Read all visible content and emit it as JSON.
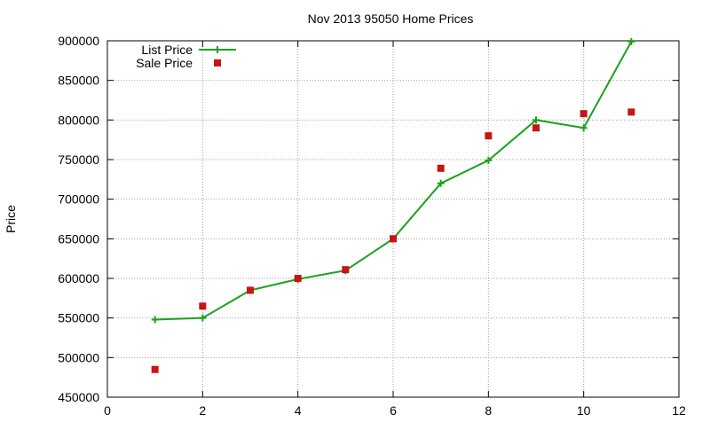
{
  "chart_data": {
    "type": "line",
    "title": "Nov 2013 95050 Home Prices",
    "xlabel": "",
    "ylabel": "Price",
    "xlim": [
      0,
      12
    ],
    "ylim": [
      450000,
      900000
    ],
    "xticks": [
      0,
      2,
      4,
      6,
      8,
      10,
      12
    ],
    "yticks": [
      450000,
      500000,
      550000,
      600000,
      650000,
      700000,
      750000,
      800000,
      850000,
      900000
    ],
    "grid": true,
    "legend_position": "top-left",
    "series": [
      {
        "name": "List Price",
        "style": "line-with-plus-markers",
        "color": "#1aa31a",
        "points": [
          {
            "x": 1,
            "y": 548000
          },
          {
            "x": 2,
            "y": 550000
          },
          {
            "x": 3,
            "y": 585000
          },
          {
            "x": 4,
            "y": 599000
          },
          {
            "x": 5,
            "y": 610000
          },
          {
            "x": 6,
            "y": 650000
          },
          {
            "x": 7,
            "y": 720000
          },
          {
            "x": 8,
            "y": 749000
          },
          {
            "x": 9,
            "y": 800000
          },
          {
            "x": 10,
            "y": 790000
          },
          {
            "x": 11,
            "y": 899000
          }
        ]
      },
      {
        "name": "Sale Price",
        "style": "square-markers",
        "color": "#c81414",
        "points": [
          {
            "x": 1,
            "y": 485000
          },
          {
            "x": 2,
            "y": 565000
          },
          {
            "x": 3,
            "y": 585000
          },
          {
            "x": 4,
            "y": 600000
          },
          {
            "x": 5,
            "y": 611000
          },
          {
            "x": 6,
            "y": 650000
          },
          {
            "x": 7,
            "y": 739000
          },
          {
            "x": 8,
            "y": 780000
          },
          {
            "x": 9,
            "y": 790000
          },
          {
            "x": 10,
            "y": 808000
          },
          {
            "x": 11,
            "y": 810000
          }
        ]
      }
    ]
  }
}
